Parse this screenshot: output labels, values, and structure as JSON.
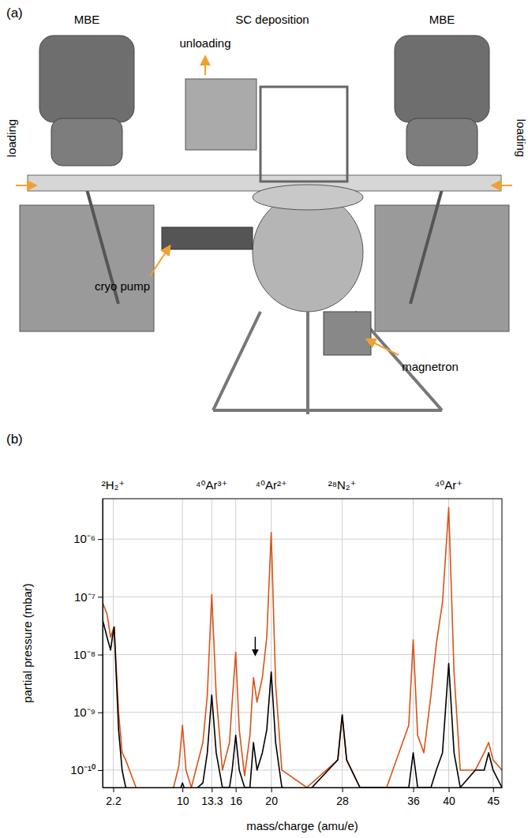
{
  "panel_labels": [
    "(a)",
    "(b)"
  ],
  "diagram": {
    "mbe_left": "MBE",
    "sc_deposition": "SC deposition",
    "mbe_right": "MBE",
    "loading_left": "loading",
    "loading_right": "loading",
    "unloading": "unloading",
    "cryo_pump": "cryo pump",
    "magnetron": "magnetron"
  },
  "chart_data": {
    "type": "line",
    "log": "y",
    "grid": true,
    "x_label": "mass/charge (amu/e)",
    "y_label": "partial pressure (mbar)",
    "xlim": [
      1,
      46
    ],
    "xticks": [
      2.2,
      10,
      13.3,
      16,
      20,
      28,
      36,
      40,
      45
    ],
    "ylim": [
      5e-11,
      5e-06
    ],
    "yticks": [
      {
        "value": 1e-10,
        "label": "10⁻¹⁰"
      },
      {
        "value": 1e-09,
        "label": "10⁻⁹"
      },
      {
        "value": 1e-08,
        "label": "10⁻⁸"
      },
      {
        "value": 1e-07,
        "label": "10⁻⁷"
      },
      {
        "value": 1e-06,
        "label": "10⁻⁶"
      }
    ],
    "peak_labels": [
      {
        "x": 2.2,
        "text": "²H₂⁺"
      },
      {
        "x": 13.3,
        "text": "⁴⁰Ar³⁺"
      },
      {
        "x": 20,
        "text": "⁴⁰Ar²⁺"
      },
      {
        "x": 28,
        "text": "²⁸N₂⁺"
      },
      {
        "x": 40,
        "text": "⁴⁰Ar⁺"
      }
    ],
    "arrow": {
      "x": 18.2,
      "y": 9e-09
    },
    "x": [
      1.0,
      1.5,
      1.9,
      2.1,
      2.3,
      2.5,
      2.8,
      3.2,
      3.6,
      5,
      7,
      9,
      9.6,
      10,
      10.4,
      11,
      12.3,
      12.8,
      13.3,
      13.8,
      14.5,
      15.3,
      15.6,
      16,
      16.4,
      17,
      17.6,
      18,
      18.4,
      19,
      19.5,
      20,
      20.5,
      21.2,
      24,
      27.5,
      28,
      28.5,
      30,
      33,
      35.5,
      36,
      36.5,
      37.2,
      38,
      38.6,
      39.3,
      40,
      40.6,
      41.3,
      43,
      44,
      44.5,
      45,
      46
    ],
    "series": [
      {
        "color": "#d95319",
        "values": [
          8e-08,
          5e-08,
          2e-08,
          2.5e-08,
          3e-08,
          8e-09,
          1e-09,
          2e-10,
          1.5e-10,
          4e-11,
          4e-11,
          5e-11,
          1.2e-10,
          6e-10,
          1e-10,
          5e-11,
          3e-10,
          2e-09,
          1.1e-07,
          2e-09,
          1e-10,
          3e-10,
          1.5e-09,
          1.1e-08,
          5e-10,
          8e-11,
          4e-10,
          4e-09,
          1.5e-09,
          4e-09,
          2e-08,
          1.3e-06,
          3e-09,
          1e-10,
          5e-11,
          1.5e-10,
          9e-10,
          1.5e-10,
          5e-11,
          5e-11,
          6e-10,
          1.8e-08,
          4e-10,
          2e-10,
          2e-09,
          1.5e-08,
          8e-08,
          3.5e-06,
          5e-09,
          1e-10,
          1e-10,
          2e-10,
          3e-10,
          1.5e-10,
          1e-10
        ]
      },
      {
        "color": "#000000",
        "values": [
          4e-08,
          2e-08,
          1.2e-08,
          2e-08,
          3e-08,
          6e-09,
          5e-10,
          1e-10,
          5e-11,
          4e-11,
          4e-11,
          4e-11,
          4e-11,
          6e-11,
          4e-11,
          4e-11,
          6e-11,
          2e-10,
          2e-09,
          2e-10,
          5e-11,
          5e-11,
          1e-10,
          4e-10,
          1e-10,
          5e-11,
          5e-11,
          3e-10,
          1e-10,
          2e-10,
          5e-10,
          5e-09,
          3e-10,
          5e-11,
          4e-11,
          1.5e-10,
          9e-10,
          1.5e-10,
          5e-11,
          5e-11,
          5e-11,
          2e-10,
          5e-11,
          5e-11,
          5e-11,
          1e-10,
          2e-10,
          7e-09,
          2e-10,
          5e-11,
          1e-10,
          1e-10,
          2e-10,
          1e-10,
          5e-11
        ]
      }
    ]
  }
}
